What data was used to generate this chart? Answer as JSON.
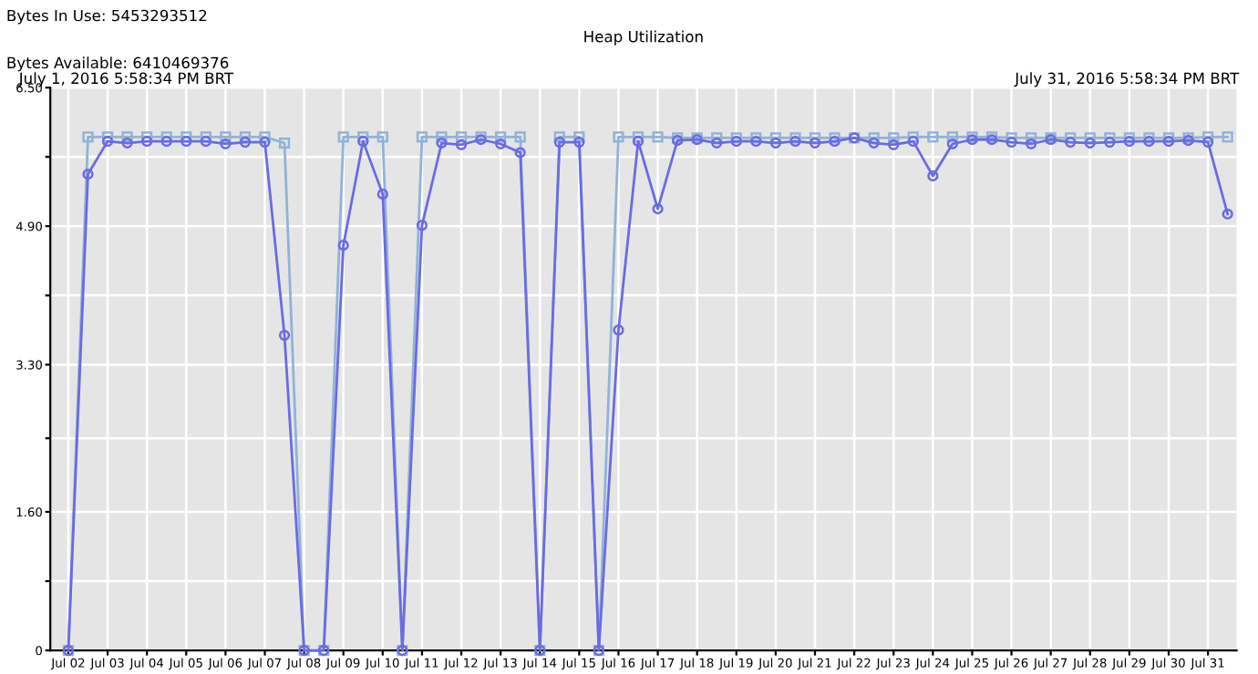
{
  "chart_data": {
    "type": "line",
    "title": "Heap Utilization",
    "annotations": [
      "Bytes In Use: 5453293512",
      "Bytes Available: 6410469376",
      "July 1, 2016 5:58:34 PM BRT",
      "July 31, 2016 5:58:34 PM BRT"
    ],
    "x": [
      "2016-07-02T00:00",
      "2016-07-02T12:00",
      "2016-07-03T00:00",
      "2016-07-03T12:00",
      "2016-07-04T00:00",
      "2016-07-04T12:00",
      "2016-07-05T00:00",
      "2016-07-05T12:00",
      "2016-07-06T00:00",
      "2016-07-06T12:00",
      "2016-07-07T00:00",
      "2016-07-07T12:00",
      "2016-07-08T00:00",
      "2016-07-08T12:00",
      "2016-07-09T00:00",
      "2016-07-09T12:00",
      "2016-07-10T00:00",
      "2016-07-10T12:00",
      "2016-07-11T00:00",
      "2016-07-11T12:00",
      "2016-07-12T00:00",
      "2016-07-12T12:00",
      "2016-07-13T00:00",
      "2016-07-13T12:00",
      "2016-07-14T00:00",
      "2016-07-14T12:00",
      "2016-07-15T00:00",
      "2016-07-15T12:00",
      "2016-07-16T00:00",
      "2016-07-16T12:00",
      "2016-07-17T00:00",
      "2016-07-17T12:00",
      "2016-07-18T00:00",
      "2016-07-18T12:00",
      "2016-07-19T00:00",
      "2016-07-19T12:00",
      "2016-07-20T00:00",
      "2016-07-20T12:00",
      "2016-07-21T00:00",
      "2016-07-21T12:00",
      "2016-07-22T00:00",
      "2016-07-22T12:00",
      "2016-07-23T00:00",
      "2016-07-23T12:00",
      "2016-07-24T00:00",
      "2016-07-24T12:00",
      "2016-07-25T00:00",
      "2016-07-25T12:00",
      "2016-07-26T00:00",
      "2016-07-26T12:00",
      "2016-07-27T00:00",
      "2016-07-27T12:00",
      "2016-07-28T00:00",
      "2016-07-28T12:00",
      "2016-07-29T00:00",
      "2016-07-29T12:00",
      "2016-07-30T00:00",
      "2016-07-30T12:00",
      "2016-07-31T00:00",
      "2016-07-31T12:00"
    ],
    "series": [
      {
        "color": "#92b2d8",
        "marker": "square",
        "values": [
          0,
          5.93,
          5.93,
          5.93,
          5.93,
          5.93,
          5.93,
          5.93,
          5.93,
          5.93,
          5.93,
          5.86,
          0,
          0,
          5.93,
          5.93,
          5.93,
          0,
          5.93,
          5.93,
          5.93,
          5.93,
          5.93,
          5.93,
          0,
          5.93,
          5.93,
          0,
          5.93,
          5.93,
          5.93,
          5.92,
          5.92,
          5.92,
          5.92,
          5.92,
          5.92,
          5.92,
          5.92,
          5.92,
          5.92,
          5.92,
          5.92,
          5.93,
          5.93,
          5.93,
          5.93,
          5.93,
          5.92,
          5.92,
          5.92,
          5.92,
          5.92,
          5.92,
          5.92,
          5.92,
          5.92,
          5.92,
          5.93,
          5.93
        ]
      },
      {
        "color": "#6b6be0",
        "marker": "circle",
        "values": [
          0,
          5.5,
          5.88,
          5.86,
          5.88,
          5.88,
          5.88,
          5.88,
          5.85,
          5.87,
          5.87,
          3.64,
          0,
          0,
          4.68,
          5.88,
          5.27,
          0,
          4.91,
          5.86,
          5.84,
          5.9,
          5.85,
          5.75,
          0,
          5.87,
          5.87,
          0,
          3.7,
          5.88,
          5.1,
          5.89,
          5.9,
          5.86,
          5.88,
          5.88,
          5.86,
          5.88,
          5.86,
          5.88,
          5.92,
          5.86,
          5.84,
          5.88,
          5.48,
          5.85,
          5.9,
          5.9,
          5.87,
          5.85,
          5.9,
          5.87,
          5.86,
          5.87,
          5.88,
          5.88,
          5.88,
          5.89,
          5.87,
          5.04
        ]
      }
    ],
    "xlim": [
      "2016-07-01T13:00",
      "2016-07-31T17:30"
    ],
    "xticks": [
      {
        "value": "2016-07-02",
        "label": "Jul 02"
      },
      {
        "value": "2016-07-03",
        "label": "Jul 03"
      },
      {
        "value": "2016-07-04",
        "label": "Jul 04"
      },
      {
        "value": "2016-07-05",
        "label": "Jul 05"
      },
      {
        "value": "2016-07-06",
        "label": "Jul 06"
      },
      {
        "value": "2016-07-07",
        "label": "Jul 07"
      },
      {
        "value": "2016-07-08",
        "label": "Jul 08"
      },
      {
        "value": "2016-07-09",
        "label": "Jul 09"
      },
      {
        "value": "2016-07-10",
        "label": "Jul 10"
      },
      {
        "value": "2016-07-11",
        "label": "Jul 11"
      },
      {
        "value": "2016-07-12",
        "label": "Jul 12"
      },
      {
        "value": "2016-07-13",
        "label": "Jul 13"
      },
      {
        "value": "2016-07-14",
        "label": "Jul 14"
      },
      {
        "value": "2016-07-15",
        "label": "Jul 15"
      },
      {
        "value": "2016-07-16",
        "label": "Jul 16"
      },
      {
        "value": "2016-07-17",
        "label": "Jul 17"
      },
      {
        "value": "2016-07-18",
        "label": "Jul 18"
      },
      {
        "value": "2016-07-19",
        "label": "Jul 19"
      },
      {
        "value": "2016-07-20",
        "label": "Jul 20"
      },
      {
        "value": "2016-07-21",
        "label": "Jul 21"
      },
      {
        "value": "2016-07-22",
        "label": "Jul 22"
      },
      {
        "value": "2016-07-23",
        "label": "Jul 23"
      },
      {
        "value": "2016-07-24",
        "label": "Jul 24"
      },
      {
        "value": "2016-07-25",
        "label": "Jul 25"
      },
      {
        "value": "2016-07-26",
        "label": "Jul 26"
      },
      {
        "value": "2016-07-27",
        "label": "Jul 27"
      },
      {
        "value": "2016-07-28",
        "label": "Jul 28"
      },
      {
        "value": "2016-07-29",
        "label": "Jul 29"
      },
      {
        "value": "2016-07-30",
        "label": "Jul 30"
      },
      {
        "value": "2016-07-31",
        "label": "Jul 31"
      }
    ],
    "ylim": [
      0,
      6.5
    ],
    "yticks": [
      0,
      {
        "value": 0.8,
        "label": null
      },
      {
        "value": 1.6,
        "label": "1.60"
      },
      {
        "value": 2.45,
        "label": null
      },
      {
        "value": 3.3,
        "label": "3.30"
      },
      {
        "value": 4.1,
        "label": null
      },
      {
        "value": 4.9,
        "label": "4.90"
      },
      {
        "value": 5.7,
        "label": null
      },
      {
        "value": 6.5,
        "label": "6.50"
      }
    ],
    "grid": true,
    "legend": false,
    "line_style": "solid"
  }
}
